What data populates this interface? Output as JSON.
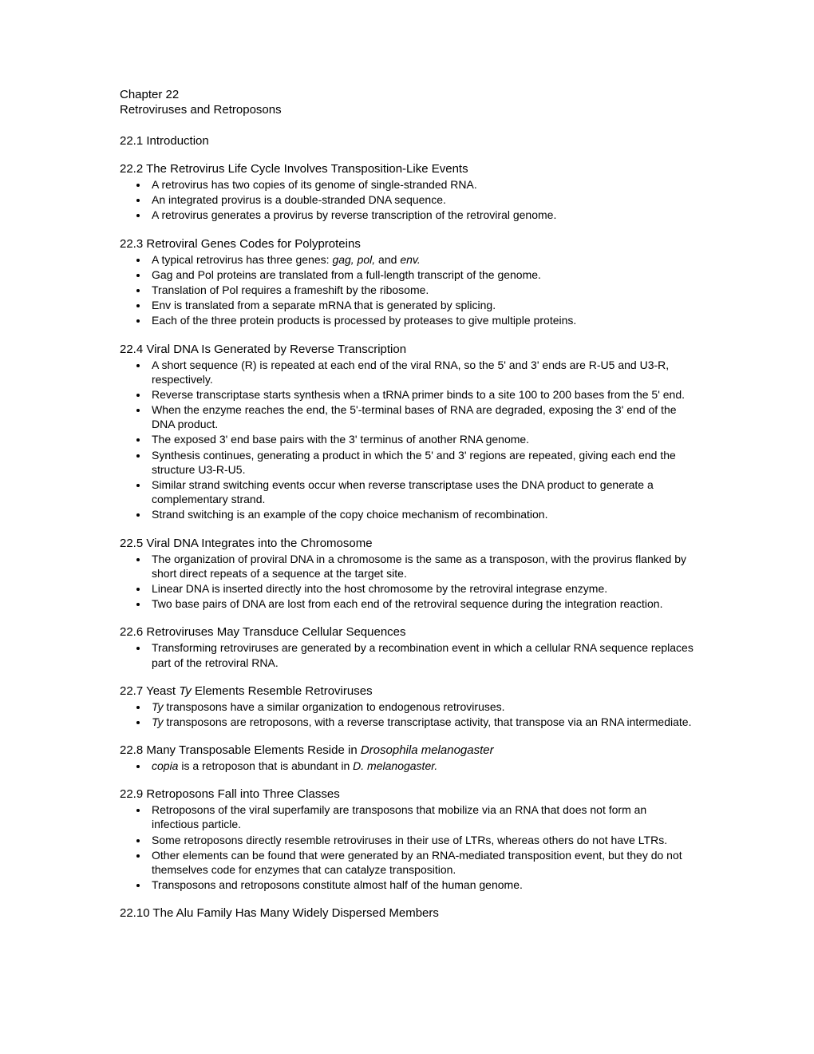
{
  "chapter": {
    "number_line": "Chapter 22",
    "title": "Retroviruses and Retroposons"
  },
  "sections": [
    {
      "id": "s1",
      "heading": "22.1 Introduction",
      "bullets": []
    },
    {
      "id": "s2",
      "heading": "22.2 The Retrovirus Life Cycle Involves Transposition-Like Events",
      "bullets": [
        {
          "text": "A retrovirus has two copies of its genome of single-stranded RNA."
        },
        {
          "text": "An integrated provirus is a double-stranded DNA sequence."
        },
        {
          "text": "A retrovirus generates a provirus by reverse transcription of the retroviral genome."
        }
      ]
    },
    {
      "id": "s3",
      "heading": "22.3 Retroviral Genes Codes for Polyproteins",
      "bullets": [
        {
          "pre": "A typical retrovirus has three genes: ",
          "italic": "gag, pol,",
          "post": " and ",
          "italic2": "env."
        },
        {
          "text": "Gag and Pol proteins are translated from a full-length transcript of the genome."
        },
        {
          "text": "Translation of Pol requires a frameshift by the ribosome."
        },
        {
          "text": "Env is translated from a separate mRNA that is generated by splicing."
        },
        {
          "text": "Each of the three protein products is processed by proteases to give multiple proteins."
        }
      ]
    },
    {
      "id": "s4",
      "heading": "22.4 Viral DNA Is Generated by Reverse Transcription",
      "bullets": [
        {
          "text": "A short sequence (R) is repeated at each end of the viral RNA, so the 5' and 3' ends are R-U5 and U3-R, respectively."
        },
        {
          "text": "Reverse transcriptase starts synthesis when a tRNA primer binds to a site 100 to 200 bases from the 5' end."
        },
        {
          "text": "When the enzyme reaches the end, the 5'-terminal bases of RNA are degraded, exposing the 3' end of the DNA product."
        },
        {
          "text": "The exposed 3' end base pairs with the 3' terminus of another RNA genome."
        },
        {
          "text": "Synthesis continues, generating a product in which the 5' and 3' regions are repeated, giving each end the structure U3-R-U5."
        },
        {
          "text": "Similar strand switching events occur when reverse transcriptase uses the DNA product to generate a complementary strand."
        },
        {
          "text": "Strand switching is an example of the copy choice mechanism of recombination."
        }
      ]
    },
    {
      "id": "s5",
      "heading": "22.5 Viral DNA Integrates into the Chromosome",
      "bullets": [
        {
          "text": "The organization of proviral DNA in a chromosome is the same as a transposon, with the provirus flanked by short direct repeats of a sequence at the target site."
        },
        {
          "text": "Linear DNA is inserted directly into the host chromosome by the retroviral integrase enzyme."
        },
        {
          "text": "Two base pairs of DNA are lost from each end of the retroviral sequence during the integration reaction."
        }
      ]
    },
    {
      "id": "s6",
      "heading": "22.6 Retroviruses May Transduce Cellular Sequences",
      "bullets": [
        {
          "text": "Transforming retroviruses are generated by a recombination event in which a cellular RNA sequence replaces part of the retroviral RNA."
        }
      ]
    },
    {
      "id": "s7",
      "heading_pre": "22.7 Yeast ",
      "heading_italic": "Ty",
      "heading_post": " Elements Resemble Retroviruses",
      "bullets": [
        {
          "italic": "Ty",
          "post": " transposons have a similar organization to endogenous retroviruses."
        },
        {
          "italic": "Ty",
          "post": " transposons are retroposons, with a reverse transcriptase activity, that transpose via an RNA intermediate."
        }
      ]
    },
    {
      "id": "s8",
      "heading_pre": "22.8 Many Transposable Elements Reside in ",
      "heading_italic": "Drosophila melanogaster",
      "heading_post": "",
      "bullets": [
        {
          "italic": "copia",
          "post": " is a retroposon that is abundant in ",
          "italic2": "D. melanogaster."
        }
      ]
    },
    {
      "id": "s9",
      "heading": "22.9 Retroposons Fall into Three Classes",
      "bullets": [
        {
          "text": "Retroposons of the viral superfamily are transposons that mobilize via an RNA that does not form an infectious particle."
        },
        {
          "text": "Some retroposons directly resemble retroviruses in their use of LTRs, whereas others do not have LTRs."
        },
        {
          "text": "Other elements can be found that were generated by an RNA-mediated transposition event, but they do not themselves code for enzymes that can catalyze transposition."
        },
        {
          "text": "Transposons and retroposons constitute almost half of the human genome."
        }
      ]
    },
    {
      "id": "s10",
      "heading": "22.10 The Alu Family Has Many Widely Dispersed Members",
      "bullets": []
    }
  ]
}
